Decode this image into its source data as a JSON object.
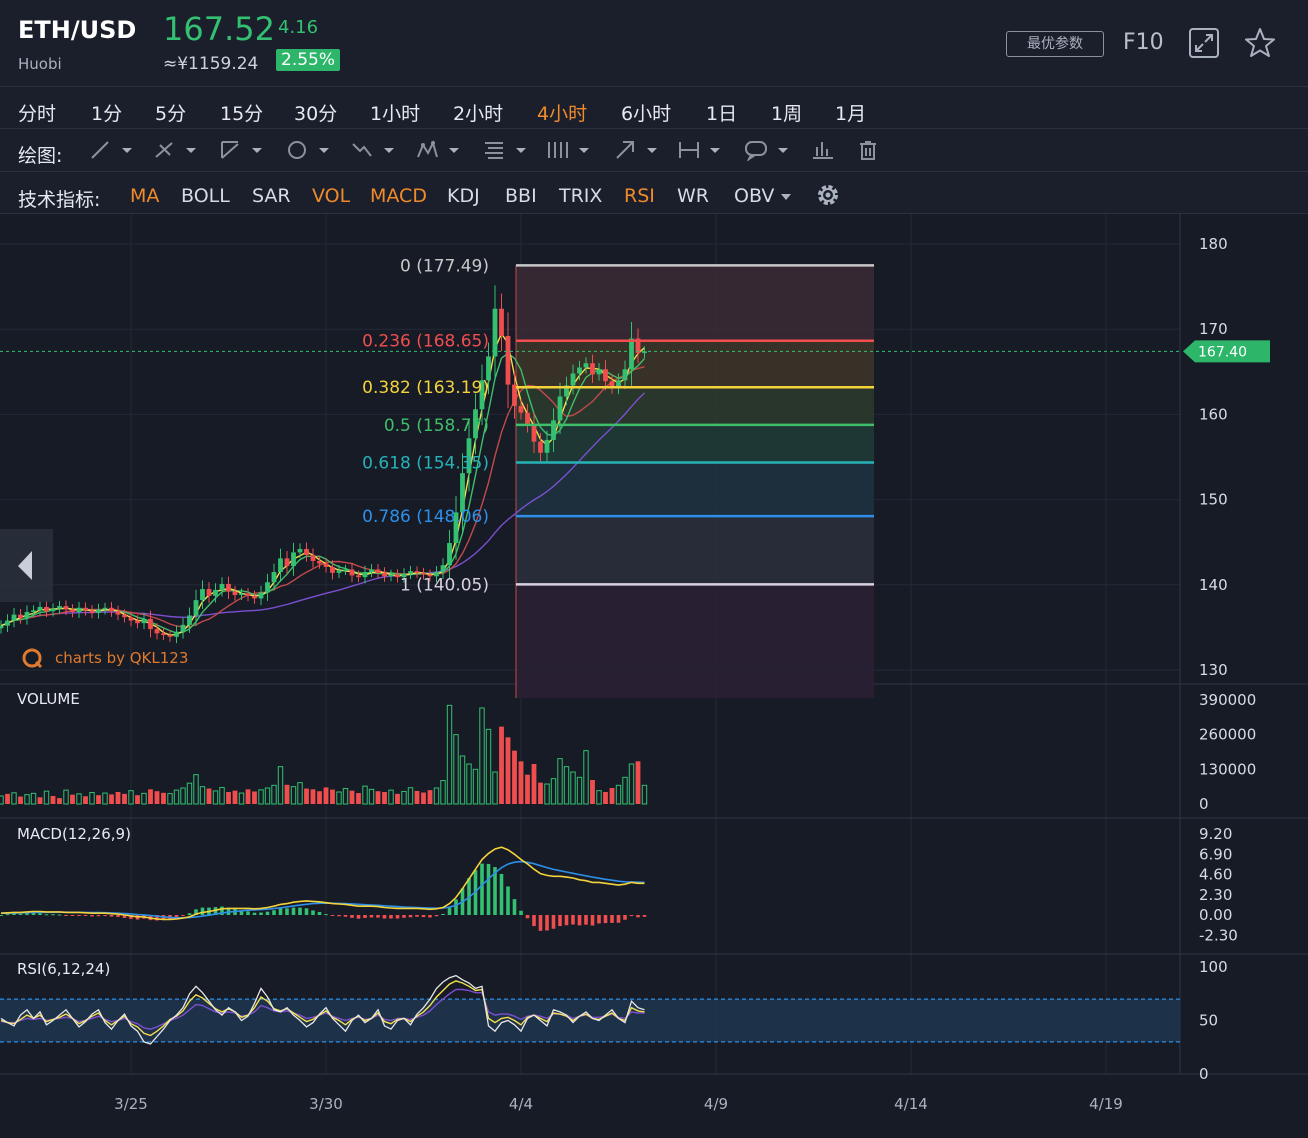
{
  "header": {
    "pair": "ETH/USD",
    "exchange": "Huobi",
    "price": "167.52",
    "change": "4.16",
    "cny_price": "≈¥1159.24",
    "change_pct": "2.55%",
    "best_params_label": "最优参数",
    "f10_label": "F10",
    "fullscreen_icon": "fullscreen-icon",
    "favorite_icon": "star-icon"
  },
  "timeframes": [
    "分时",
    "1分",
    "5分",
    "15分",
    "30分",
    "1小时",
    "2小时",
    "4小时",
    "6小时",
    "1日",
    "1周",
    "1月"
  ],
  "active_timeframe": "4小时",
  "drawing": {
    "label": "绘图:",
    "tools": [
      "line-tool-icon",
      "ray-tool-icon",
      "channel-tool-icon",
      "circle-tool-icon",
      "path-tool-icon",
      "pattern-tool-icon",
      "fib-tool-icon",
      "gann-tool-icon",
      "arrow-tool-icon",
      "measure-tool-icon",
      "note-tool-icon",
      "bars-tool-icon",
      "trash-icon"
    ]
  },
  "indicators": {
    "label": "技术指标:",
    "items": [
      {
        "name": "MA",
        "active": true
      },
      {
        "name": "BOLL",
        "active": false
      },
      {
        "name": "SAR",
        "active": false
      },
      {
        "name": "VOL",
        "active": true
      },
      {
        "name": "MACD",
        "active": true
      },
      {
        "name": "KDJ",
        "active": false
      },
      {
        "name": "BBI",
        "active": false
      },
      {
        "name": "TRIX",
        "active": false
      },
      {
        "name": "RSI",
        "active": true
      },
      {
        "name": "WR",
        "active": false
      },
      {
        "name": "OBV",
        "active": false
      }
    ],
    "settings_icon": "gear-icon"
  },
  "colors": {
    "up": "#33c171",
    "down": "#f04e4e",
    "accent": "#f08a2a",
    "ma_fast": "#f4e04d",
    "ma_mid": "#3fbf6a",
    "ma_slow": "#c24a4a",
    "ma_long": "#7b4fcf",
    "macd_line": "#f4d23c",
    "signal_line": "#2d8fe8",
    "fib_0": "#c9c9c9",
    "fib_0236": "#f04e4e",
    "fib_0382": "#f4d23c",
    "fib_05": "#3fbf6a",
    "fib_0618": "#26b3b8",
    "fib_0786": "#2d8fe8",
    "fib_1": "#d9d0e0"
  },
  "chart_data": [
    {
      "type": "candlestick",
      "panel": "price",
      "x_tick_labels": [
        "3/25",
        "3/30",
        "4/4",
        "4/9",
        "4/14",
        "4/19"
      ],
      "x_ticks_at_candle_index": [
        0,
        30,
        60,
        90,
        120,
        150
      ],
      "start_candle_index": -20,
      "y_ticks": [
        130,
        140,
        150,
        160,
        170,
        180
      ],
      "ylim": [
        127,
        183
      ],
      "last_price": "167.40",
      "close_series": [
        135.2,
        135.8,
        136.5,
        136.1,
        136.8,
        137.0,
        137.4,
        136.9,
        137.2,
        137.5,
        137.1,
        136.8,
        137.3,
        137.0,
        136.7,
        137.1,
        137.3,
        136.9,
        136.5,
        136.2,
        135.8,
        135.5,
        136.0,
        134.8,
        134.3,
        134.1,
        133.9,
        134.5,
        135.3,
        136.4,
        138.2,
        139.5,
        138.7,
        139.4,
        140.1,
        139.2,
        138.8,
        139.0,
        138.7,
        138.4,
        139.1,
        140.3,
        141.5,
        143.1,
        142.2,
        143.8,
        144.2,
        143.5,
        142.8,
        142.5,
        142.1,
        141.4,
        141.7,
        141.8,
        141.1,
        140.9,
        141.5,
        141.8,
        141.4,
        141.0,
        141.2,
        140.9,
        141.3,
        141.6,
        141.4,
        141.2,
        141.0,
        141.5,
        142.3,
        144.9,
        148.5,
        153.1,
        157.2,
        160.6,
        164.0,
        166.8,
        172.4,
        169.2,
        163.5,
        161.0,
        160.2,
        158.9,
        156.8,
        155.5,
        157.0,
        159.3,
        162.1,
        163.4,
        164.8,
        165.5,
        166.0,
        164.7,
        165.3,
        163.9,
        163.2,
        164.0,
        165.3,
        168.9,
        167.2,
        167.4
      ],
      "fibonacci": [
        {
          "ratio": "0",
          "price": "(177.49)"
        },
        {
          "ratio": "0.236",
          "price": "(168.65)"
        },
        {
          "ratio": "0.382",
          "price": "(163.19)"
        },
        {
          "ratio": "0.5",
          "price": "(158.77)"
        },
        {
          "ratio": "0.618",
          "price": "(154.35)"
        },
        {
          "ratio": "0.786",
          "price": "(148.06)"
        },
        {
          "ratio": "1",
          "price": "(140.05)"
        }
      ],
      "watermark": "charts by QKL123"
    },
    {
      "type": "bar",
      "panel": "volume",
      "title": "VOLUME",
      "y_ticks": [
        "390000",
        "260000",
        "130000",
        "0"
      ],
      "ylim": [
        0,
        390000
      ],
      "values": [
        30000,
        38000,
        42000,
        28000,
        35000,
        40000,
        25000,
        48000,
        30000,
        22000,
        52000,
        35000,
        38000,
        29000,
        43000,
        33000,
        41000,
        36000,
        45000,
        38000,
        50000,
        33000,
        40000,
        55000,
        48000,
        42000,
        39000,
        52000,
        60000,
        78000,
        110000,
        65000,
        58000,
        49000,
        62000,
        45000,
        50000,
        41000,
        55000,
        47000,
        53000,
        60000,
        70000,
        140000,
        72000,
        65000,
        80000,
        58000,
        55000,
        48000,
        62000,
        54000,
        45000,
        58000,
        50000,
        41000,
        67000,
        55000,
        48000,
        45000,
        52000,
        38000,
        47000,
        61000,
        49000,
        43000,
        52000,
        60000,
        88000,
        370000,
        260000,
        180000,
        150000,
        130000,
        360000,
        280000,
        120000,
        290000,
        250000,
        200000,
        160000,
        110000,
        150000,
        80000,
        75000,
        95000,
        170000,
        140000,
        120000,
        100000,
        200000,
        90000,
        50000,
        45000,
        60000,
        70000,
        100000,
        150000,
        160000,
        70000
      ],
      "up_flags": [
        1,
        0,
        1,
        0,
        1,
        1,
        0,
        1,
        0,
        0,
        1,
        0,
        1,
        0,
        1,
        0,
        1,
        0,
        0,
        0,
        1,
        0,
        1,
        0,
        0,
        0,
        1,
        1,
        1,
        1,
        1,
        1,
        0,
        1,
        1,
        0,
        0,
        1,
        0,
        0,
        1,
        1,
        1,
        1,
        0,
        1,
        1,
        0,
        0,
        0,
        0,
        0,
        1,
        1,
        0,
        0,
        1,
        1,
        0,
        0,
        1,
        0,
        1,
        1,
        0,
        0,
        0,
        1,
        1,
        1,
        1,
        1,
        1,
        1,
        1,
        1,
        1,
        0,
        0,
        0,
        0,
        0,
        0,
        0,
        1,
        1,
        1,
        1,
        1,
        1,
        1,
        0,
        1,
        0,
        0,
        1,
        1,
        1,
        0,
        1
      ]
    },
    {
      "type": "line",
      "panel": "macd",
      "title": "MACD(12,26,9)",
      "y_ticks": [
        "9.20",
        "6.90",
        "4.60",
        "2.30",
        "0.00",
        "-2.30"
      ],
      "ylim": [
        -2.3,
        9.2
      ],
      "dif": [
        0.2,
        0.25,
        0.3,
        0.3,
        0.35,
        0.4,
        0.4,
        0.35,
        0.35,
        0.35,
        0.3,
        0.3,
        0.3,
        0.25,
        0.2,
        0.2,
        0.2,
        0.15,
        0.1,
        0.0,
        -0.1,
        -0.2,
        -0.2,
        -0.35,
        -0.45,
        -0.5,
        -0.5,
        -0.45,
        -0.35,
        -0.2,
        0.1,
        0.3,
        0.4,
        0.55,
        0.7,
        0.75,
        0.75,
        0.75,
        0.75,
        0.7,
        0.75,
        0.85,
        1.0,
        1.2,
        1.3,
        1.45,
        1.55,
        1.6,
        1.55,
        1.5,
        1.4,
        1.3,
        1.25,
        1.2,
        1.1,
        1.0,
        1.0,
        1.0,
        0.95,
        0.85,
        0.8,
        0.75,
        0.75,
        0.75,
        0.75,
        0.7,
        0.65,
        0.7,
        0.85,
        1.3,
        2.0,
        3.0,
        4.1,
        5.2,
        6.3,
        7.0,
        7.5,
        7.7,
        7.4,
        6.9,
        6.3,
        5.8,
        5.2,
        4.7,
        4.5,
        4.4,
        4.4,
        4.3,
        4.2,
        4.0,
        3.9,
        3.7,
        3.7,
        3.6,
        3.5,
        3.4,
        3.5,
        3.7,
        3.6,
        3.6
      ],
      "dea": [
        0.2,
        0.2,
        0.22,
        0.24,
        0.26,
        0.28,
        0.3,
        0.31,
        0.31,
        0.32,
        0.32,
        0.31,
        0.31,
        0.3,
        0.28,
        0.27,
        0.26,
        0.24,
        0.21,
        0.17,
        0.12,
        0.06,
        0.01,
        -0.06,
        -0.14,
        -0.21,
        -0.27,
        -0.31,
        -0.32,
        -0.3,
        -0.22,
        -0.12,
        -0.02,
        0.1,
        0.22,
        0.33,
        0.41,
        0.48,
        0.54,
        0.57,
        0.61,
        0.66,
        0.73,
        0.82,
        0.92,
        1.03,
        1.13,
        1.22,
        1.29,
        1.33,
        1.35,
        1.34,
        1.32,
        1.3,
        1.26,
        1.21,
        1.17,
        1.14,
        1.1,
        1.05,
        1.0,
        0.95,
        0.91,
        0.88,
        0.85,
        0.82,
        0.79,
        0.77,
        0.79,
        0.89,
        1.11,
        1.49,
        2.01,
        2.65,
        3.38,
        4.1,
        4.78,
        5.37,
        5.78,
        6.0,
        6.06,
        5.99,
        5.83,
        5.6,
        5.38,
        5.18,
        5.03,
        4.88,
        4.74,
        4.59,
        4.45,
        4.3,
        4.18,
        4.06,
        3.95,
        3.84,
        3.77,
        3.76,
        3.73,
        3.7
      ]
    },
    {
      "type": "line",
      "panel": "rsi",
      "title": "RSI(6,12,24)",
      "y_ticks": [
        "100",
        "50",
        "0"
      ],
      "ylim": [
        0,
        100
      ],
      "band": [
        30,
        70
      ],
      "rsi6": [
        52,
        48,
        45,
        55,
        60,
        52,
        58,
        46,
        50,
        55,
        60,
        52,
        44,
        49,
        56,
        60,
        48,
        42,
        50,
        56,
        45,
        40,
        30,
        28,
        35,
        42,
        50,
        55,
        62,
        75,
        82,
        76,
        68,
        60,
        55,
        62,
        58,
        50,
        54,
        66,
        80,
        72,
        60,
        58,
        62,
        55,
        50,
        44,
        48,
        56,
        62,
        52,
        46,
        40,
        50,
        55,
        48,
        52,
        60,
        45,
        42,
        50,
        52,
        46,
        56,
        62,
        70,
        80,
        86,
        90,
        92,
        88,
        85,
        80,
        82,
        45,
        40,
        48,
        50,
        46,
        40,
        52,
        55,
        50,
        45,
        60,
        58,
        55,
        48,
        54,
        58,
        52,
        50,
        55,
        60,
        52,
        48,
        68,
        62,
        60
      ],
      "rsi12": [
        50,
        48,
        47,
        51,
        55,
        52,
        55,
        49,
        51,
        53,
        56,
        52,
        47,
        50,
        54,
        57,
        50,
        46,
        50,
        54,
        47,
        44,
        38,
        36,
        40,
        45,
        51,
        54,
        59,
        68,
        74,
        71,
        66,
        61,
        58,
        61,
        58,
        53,
        55,
        62,
        72,
        68,
        61,
        59,
        61,
        57,
        53,
        49,
        51,
        55,
        59,
        53,
        50,
        46,
        51,
        54,
        50,
        52,
        57,
        49,
        47,
        51,
        52,
        49,
        54,
        58,
        64,
        72,
        78,
        84,
        87,
        85,
        82,
        78,
        79,
        52,
        48,
        52,
        53,
        50,
        46,
        53,
        55,
        52,
        49,
        57,
        56,
        54,
        50,
        54,
        56,
        52,
        51,
        54,
        57,
        52,
        50,
        62,
        59,
        58
      ],
      "rsi24": [
        49,
        48,
        48,
        50,
        52,
        51,
        52,
        50,
        51,
        52,
        53,
        52,
        49,
        50,
        52,
        54,
        51,
        49,
        50,
        52,
        49,
        47,
        43,
        42,
        44,
        47,
        50,
        52,
        55,
        60,
        65,
        64,
        61,
        58,
        57,
        58,
        57,
        54,
        55,
        58,
        64,
        62,
        59,
        58,
        59,
        57,
        55,
        52,
        53,
        55,
        57,
        54,
        52,
        50,
        52,
        53,
        51,
        52,
        55,
        51,
        50,
        52,
        52,
        51,
        53,
        55,
        59,
        65,
        70,
        75,
        79,
        79,
        78,
        76,
        76,
        58,
        55,
        56,
        56,
        54,
        51,
        54,
        55,
        54,
        52,
        56,
        56,
        55,
        52,
        54,
        55,
        53,
        53,
        54,
        56,
        53,
        52,
        58,
        57,
        57
      ]
    }
  ]
}
